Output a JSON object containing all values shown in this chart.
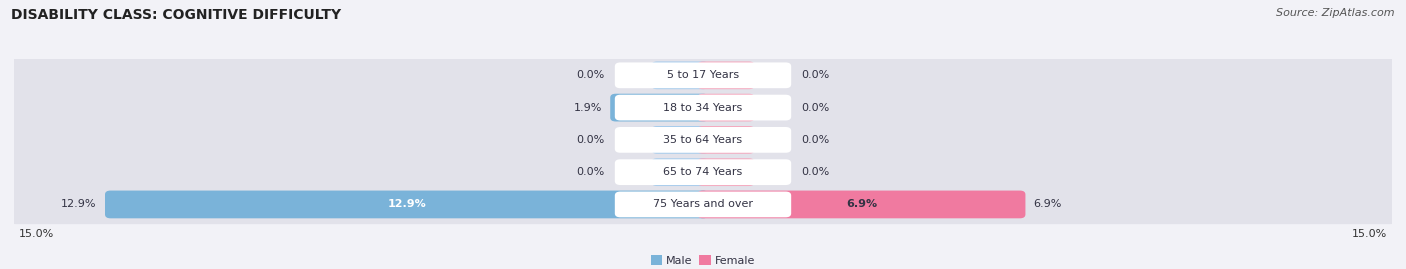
{
  "title": "DISABILITY CLASS: COGNITIVE DIFFICULTY",
  "source": "Source: ZipAtlas.com",
  "categories": [
    "5 to 17 Years",
    "18 to 34 Years",
    "35 to 64 Years",
    "65 to 74 Years",
    "75 Years and over"
  ],
  "male_values": [
    0.0,
    1.9,
    0.0,
    0.0,
    12.9
  ],
  "female_values": [
    0.0,
    0.0,
    0.0,
    0.0,
    6.9
  ],
  "max_val": 15.0,
  "male_color": "#7ab3d9",
  "female_color": "#f07aa0",
  "female_color_light": "#f4aabf",
  "male_color_light": "#a8ccec",
  "row_bg_color": "#e2e2ea",
  "fig_bg_color": "#f2f2f7",
  "title_color": "#222222",
  "label_color": "#333344",
  "source_color": "#555555",
  "tick_color": "#333333",
  "title_fontsize": 10,
  "bar_label_fontsize": 8,
  "cat_label_fontsize": 8,
  "tick_fontsize": 8,
  "source_fontsize": 8,
  "stub_val": 1.0
}
